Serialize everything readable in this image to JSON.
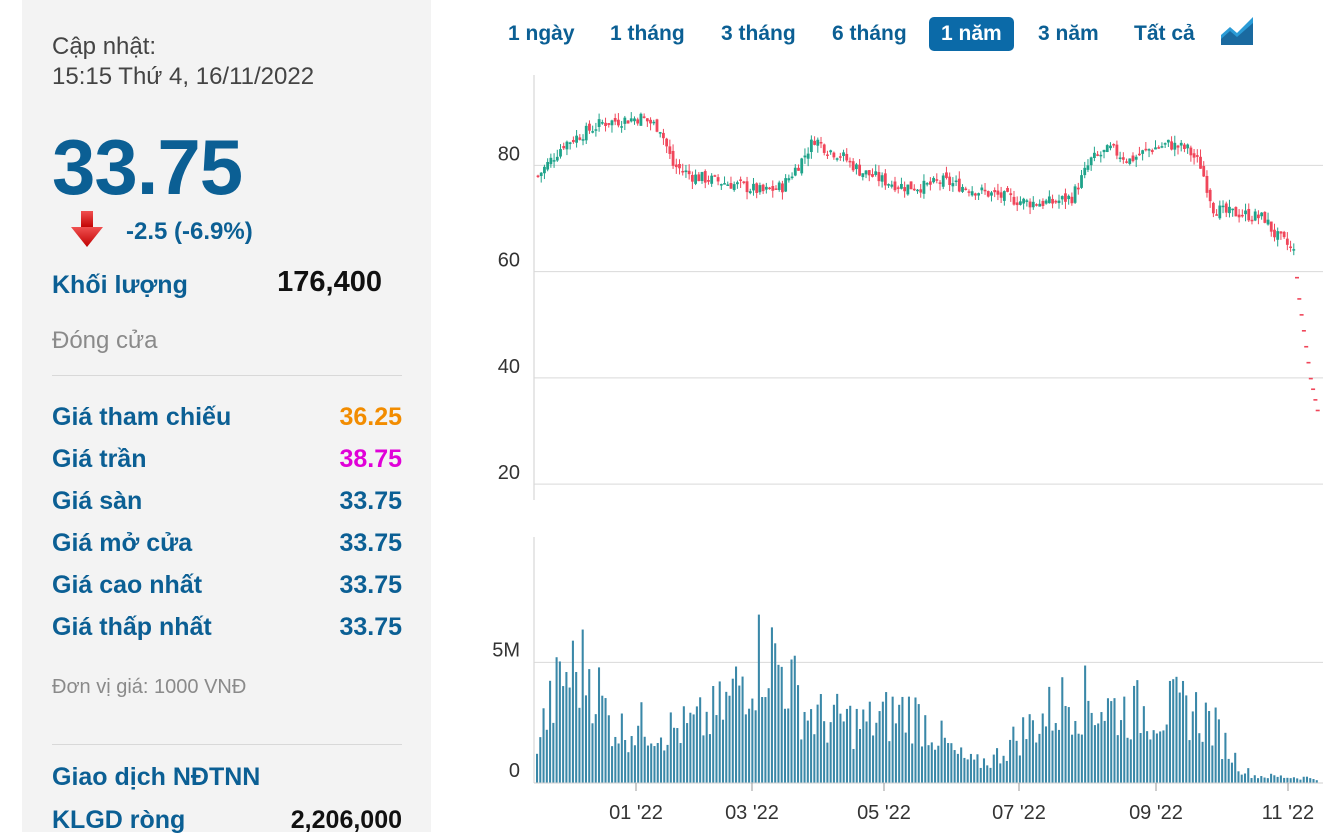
{
  "summary": {
    "updated_label": "Cập nhật:",
    "updated_time": "15:15 Thứ 4, 16/11/2022",
    "price": "33.75",
    "change": "-2.5 (-6.9%)",
    "volume_label": "Khối lượng",
    "volume_value": "176,400",
    "close_label": "Đóng cửa",
    "unit_note": "Đơn vị giá: 1000 VNĐ"
  },
  "stats": [
    {
      "label": "Giá tham chiếu",
      "value": "36.25",
      "color": "#f28c00"
    },
    {
      "label": "Giá trần",
      "value": "38.75",
      "color": "#e000d8"
    },
    {
      "label": "Giá sàn",
      "value": "33.75",
      "color": "#0b5f94"
    },
    {
      "label": "Giá mở cửa",
      "value": "33.75",
      "color": "#0b5f94"
    },
    {
      "label": "Giá cao nhất",
      "value": "33.75",
      "color": "#0b5f94"
    },
    {
      "label": "Giá thấp nhất",
      "value": "33.75",
      "color": "#0b5f94"
    }
  ],
  "foreign": {
    "title": "Giao dịch NĐTNN",
    "net_label": "KLGD ròng",
    "net_value": "2,206,000"
  },
  "range_tabs": [
    "1 ngày",
    "1 tháng",
    "3 tháng",
    "6 tháng",
    "1 năm",
    "3 năm",
    "Tất cả"
  ],
  "active_tab": "1 năm",
  "icons": {
    "down": "down-arrow-icon",
    "chart_toggle": "area-chart-icon"
  },
  "colors": {
    "up": "#1fa38a",
    "down": "#f0465a",
    "volume": "#3a88a8",
    "accent": "#0b5f94"
  },
  "chart_data": {
    "type": "candlestick",
    "price": {
      "y_ticks": [
        20,
        40,
        60,
        80
      ],
      "ylim": [
        17,
        97
      ],
      "points": [
        [
          0,
          78
        ],
        [
          8,
          84
        ],
        [
          20,
          88
        ],
        [
          32,
          89
        ],
        [
          38,
          87
        ],
        [
          42,
          80
        ],
        [
          48,
          78
        ],
        [
          56,
          77
        ],
        [
          64,
          76
        ],
        [
          70,
          75
        ],
        [
          76,
          76
        ],
        [
          82,
          81
        ],
        [
          86,
          85
        ],
        [
          90,
          83
        ],
        [
          94,
          82
        ],
        [
          100,
          79
        ],
        [
          108,
          77
        ],
        [
          114,
          76
        ],
        [
          120,
          76
        ],
        [
          126,
          77
        ],
        [
          132,
          76
        ],
        [
          138,
          75
        ],
        [
          145,
          74
        ],
        [
          152,
          73
        ],
        [
          160,
          73
        ],
        [
          166,
          74
        ],
        [
          172,
          81
        ],
        [
          178,
          83
        ],
        [
          184,
          81
        ],
        [
          190,
          83
        ],
        [
          196,
          84
        ],
        [
          202,
          83
        ],
        [
          206,
          80
        ],
        [
          210,
          72
        ],
        [
          214,
          71
        ],
        [
          218,
          71
        ],
        [
          226,
          70
        ],
        [
          229,
          67
        ],
        [
          233,
          65
        ],
        [
          236,
          63
        ]
      ],
      "tail_drops": [
        59,
        55,
        52,
        49,
        46,
        43,
        40,
        38,
        36,
        34
      ]
    },
    "volume": {
      "y_ticks_labels": [
        "0",
        "5M"
      ],
      "y_ticks_values": [
        0,
        5
      ],
      "ylim": [
        0,
        10.2
      ],
      "profile": [
        [
          0,
          1.8
        ],
        [
          8,
          4.4
        ],
        [
          16,
          4.8
        ],
        [
          22,
          2.6
        ],
        [
          26,
          2.2
        ],
        [
          34,
          2.4
        ],
        [
          40,
          2.2
        ],
        [
          46,
          2.3
        ],
        [
          52,
          2.6
        ],
        [
          58,
          3.2
        ],
        [
          64,
          4.6
        ],
        [
          70,
          5.5
        ],
        [
          76,
          4.6
        ],
        [
          82,
          3.0
        ],
        [
          88,
          2.6
        ],
        [
          94,
          2.6
        ],
        [
          100,
          2.4
        ],
        [
          106,
          2.7
        ],
        [
          114,
          3.0
        ],
        [
          120,
          2.4
        ],
        [
          128,
          1.2
        ],
        [
          134,
          0.8
        ],
        [
          140,
          1.0
        ],
        [
          148,
          2.0
        ],
        [
          156,
          2.8
        ],
        [
          164,
          3.6
        ],
        [
          172,
          3.2
        ],
        [
          180,
          3.0
        ],
        [
          190,
          3.0
        ],
        [
          200,
          3.1
        ],
        [
          206,
          2.6
        ],
        [
          212,
          1.4
        ],
        [
          216,
          0.6
        ],
        [
          220,
          0.3
        ],
        [
          240,
          0.2
        ]
      ]
    },
    "x_ticks": [
      "01 '22",
      "03 '22",
      "05 '22",
      "07 '22",
      "09 '22",
      "11 '22"
    ]
  }
}
